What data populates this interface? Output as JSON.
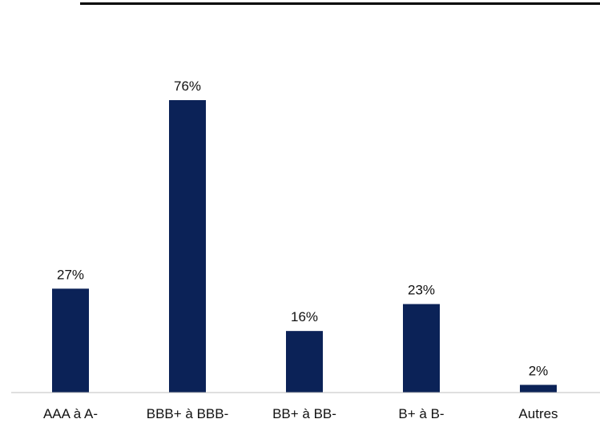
{
  "colors": {
    "bar": "#0B2257",
    "axis": "#BFBFBF",
    "rule": "#000000",
    "text": "#111111"
  },
  "chart_data": {
    "type": "bar",
    "categories": [
      "AAA à A-",
      "BBB+ à BBB-",
      "BB+ à BB-",
      "B+ à B-",
      "Autres"
    ],
    "values": [
      27,
      76,
      16,
      23,
      2
    ],
    "data_labels": [
      "27%",
      "76%",
      "16%",
      "23%",
      "2%"
    ],
    "title": "",
    "xlabel": "",
    "ylabel": "",
    "ylim": [
      0,
      76
    ],
    "grid": false,
    "legend": "none"
  }
}
